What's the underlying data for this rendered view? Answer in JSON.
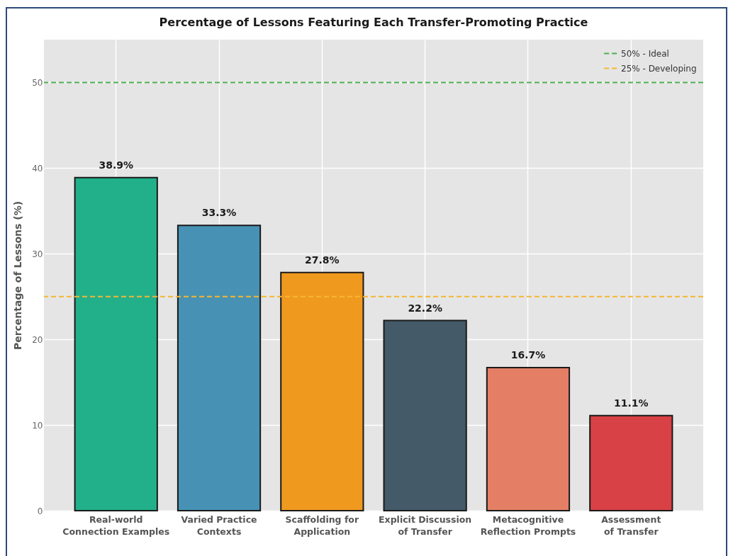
{
  "chart_data": {
    "type": "bar",
    "title": "Percentage of Lessons Featuring Each Transfer-Promoting Practice",
    "ylabel": "Percentage of Lessons (%)",
    "categories": [
      "Real-world\nConnection Examples",
      "Varied Practice\nContexts",
      "Scaffolding for\nApplication",
      "Explicit Discussion\nof Transfer",
      "Metacognitive\nReflection Prompts",
      "Assessment\nof Transfer"
    ],
    "values": [
      38.9,
      33.3,
      27.8,
      22.2,
      16.7,
      11.1
    ],
    "colors": [
      "#22b08a",
      "#4792b4",
      "#f0991f",
      "#445a69",
      "#e47f66",
      "#d84145"
    ],
    "value_labels": [
      "38.9%",
      "33.3%",
      "27.8%",
      "22.2%",
      "16.7%",
      "11.1%"
    ],
    "ylim": [
      0,
      55
    ],
    "yticks": [
      0,
      10,
      20,
      30,
      40,
      50
    ],
    "grid": true,
    "legend": "top right",
    "ref_lines": [
      {
        "axis": "y",
        "value": 50,
        "label": "50% - Ideal",
        "color": "#4caf50",
        "line_style": "dashed"
      },
      {
        "axis": "y",
        "value": 25,
        "label": "25% - Developing",
        "color": "#f5b731",
        "line_style": "dashed"
      }
    ]
  }
}
